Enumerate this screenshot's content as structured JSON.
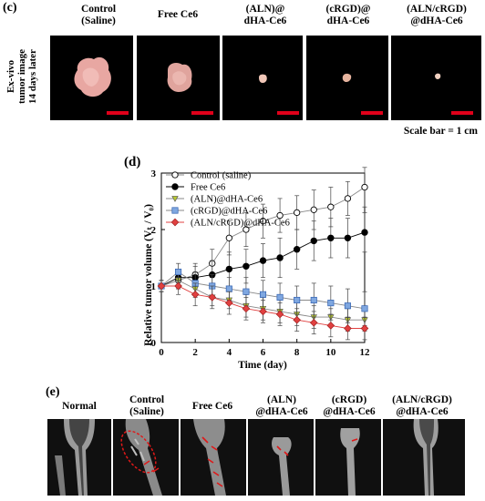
{
  "panel_c": {
    "label": "(c)",
    "side_label": [
      "Ex-vivo",
      "tumor image",
      "14 days later"
    ],
    "columns": [
      {
        "line1": "Control",
        "line2": "(Saline)"
      },
      {
        "line1": "Free Ce6",
        "line2": ""
      },
      {
        "line1": "(ALN)@",
        "line2": "dHA-Ce6"
      },
      {
        "line1": "(cRGD)@",
        "line2": "dHA-Ce6"
      },
      {
        "line1": "(ALN/cRGD)",
        "line2": "@dHA-Ce6"
      }
    ],
    "scale_text": "Scale bar = 1 cm",
    "scale_color": "#e0001a"
  },
  "panel_d": {
    "label": "(d)"
  },
  "chart_data": {
    "type": "line",
    "xlabel": "Time (day)",
    "ylabel": "Relative tumor volume (Vₜ / V₀)",
    "xlim": [
      0,
      12
    ],
    "ylim": [
      0,
      3
    ],
    "xticks": [
      0,
      2,
      4,
      6,
      8,
      10,
      12
    ],
    "yticks": [
      0,
      1,
      2,
      3
    ],
    "legend_position": "top-left",
    "x": [
      0,
      1,
      2,
      3,
      4,
      5,
      6,
      7,
      8,
      9,
      10,
      11,
      12
    ],
    "series": [
      {
        "name": "Control (saline)",
        "marker": "circle-open",
        "color": "#000000",
        "line": "#888888",
        "values": [
          1.0,
          1.1,
          1.2,
          1.4,
          1.85,
          2.0,
          2.15,
          2.25,
          2.3,
          2.35,
          2.4,
          2.55,
          2.75
        ],
        "errors": [
          0.1,
          0.15,
          0.2,
          0.25,
          0.3,
          0.3,
          0.3,
          0.3,
          0.3,
          0.35,
          0.35,
          0.3,
          0.35
        ]
      },
      {
        "name": "Free Ce6",
        "marker": "circle-filled",
        "color": "#000000",
        "line": "#000000",
        "values": [
          1.0,
          1.15,
          1.15,
          1.2,
          1.3,
          1.35,
          1.45,
          1.5,
          1.65,
          1.8,
          1.85,
          1.85,
          1.95
        ],
        "errors": [
          0.1,
          0.15,
          0.2,
          0.25,
          0.3,
          0.3,
          0.3,
          0.35,
          0.35,
          0.35,
          0.35,
          0.35,
          0.35
        ]
      },
      {
        "name": "(ALN)@dHA-Ce6",
        "marker": "triangle-down",
        "color": "#b8c832",
        "line": "#888888",
        "values": [
          1.0,
          1.1,
          0.95,
          0.8,
          0.75,
          0.65,
          0.6,
          0.55,
          0.5,
          0.45,
          0.45,
          0.4,
          0.4
        ],
        "errors": [
          0.1,
          0.15,
          0.15,
          0.15,
          0.15,
          0.2,
          0.2,
          0.2,
          0.2,
          0.2,
          0.15,
          0.2,
          0.2
        ]
      },
      {
        "name": "(cRGD)@dHA-Ce6",
        "marker": "square",
        "color": "#7fa7e0",
        "line": "#888888",
        "values": [
          1.0,
          1.25,
          1.05,
          1.0,
          0.95,
          0.9,
          0.85,
          0.8,
          0.75,
          0.75,
          0.7,
          0.65,
          0.6
        ],
        "errors": [
          0.1,
          0.15,
          0.2,
          0.2,
          0.2,
          0.25,
          0.25,
          0.25,
          0.25,
          0.3,
          0.3,
          0.3,
          0.3
        ]
      },
      {
        "name": "(ALN/cRGD)@dHA-Ce6",
        "marker": "diamond",
        "color": "#e04040",
        "line": "#e04040",
        "values": [
          1.0,
          1.0,
          0.85,
          0.8,
          0.7,
          0.6,
          0.55,
          0.5,
          0.4,
          0.35,
          0.3,
          0.25,
          0.25
        ],
        "errors": [
          0.1,
          0.15,
          0.2,
          0.2,
          0.2,
          0.2,
          0.2,
          0.2,
          0.2,
          0.2,
          0.2,
          0.2,
          0.2
        ]
      }
    ]
  },
  "panel_e": {
    "label": "(e)",
    "columns": [
      {
        "line1": "Normal",
        "line2": ""
      },
      {
        "line1": "Control",
        "line2": "(Saline)"
      },
      {
        "line1": "Free Ce6",
        "line2": ""
      },
      {
        "line1": "(ALN)",
        "line2": "@dHA-Ce6"
      },
      {
        "line1": "(cRGD)",
        "line2": "@dHA-Ce6"
      },
      {
        "line1": "(ALN/cRGD)",
        "line2": "@dHA-Ce6"
      }
    ],
    "marker_color": "#e01818"
  }
}
